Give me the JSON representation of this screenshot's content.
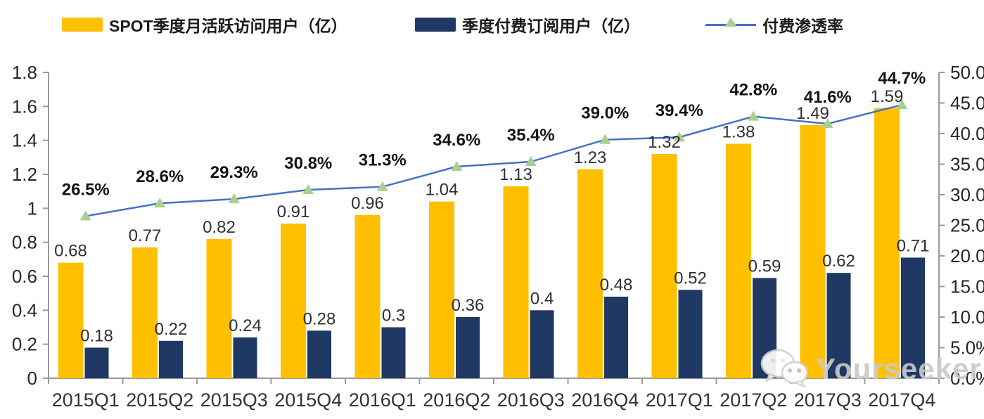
{
  "legend": {
    "items": [
      {
        "label": "SPOT季度月活跃访问用户（亿）",
        "swatch_color": "#FFC000",
        "type": "bar"
      },
      {
        "label": "季度付费订阅用户（亿）",
        "swatch_color": "#1F3864",
        "type": "bar"
      },
      {
        "label": "付费渗透率",
        "line_color": "#4472C4",
        "marker_color": "#A9D18E",
        "type": "line"
      }
    ]
  },
  "chart_data": {
    "type": "bar+line",
    "title": "",
    "categories": [
      "2015Q1",
      "2015Q2",
      "2015Q3",
      "2015Q4",
      "2016Q1",
      "2016Q2",
      "2016Q3",
      "2016Q4",
      "2017Q1",
      "2017Q2",
      "2017Q3",
      "2017Q4"
    ],
    "series": [
      {
        "name": "SPOT季度月活跃访问用户（亿）",
        "type": "bar",
        "axis": "left",
        "color": "#FFC000",
        "values": [
          0.68,
          0.77,
          0.82,
          0.91,
          0.96,
          1.04,
          1.13,
          1.23,
          1.32,
          1.38,
          1.49,
          1.59
        ],
        "value_labels": [
          "0.68",
          "0.77",
          "0.82",
          "0.91",
          "0.96",
          "1.04",
          "1.13",
          "1.23",
          "1.32",
          "1.38",
          "1.49",
          "1.59"
        ]
      },
      {
        "name": "季度付费订阅用户（亿）",
        "type": "bar",
        "axis": "left",
        "color": "#1F3864",
        "values": [
          0.18,
          0.22,
          0.24,
          0.28,
          0.3,
          0.36,
          0.4,
          0.48,
          0.52,
          0.59,
          0.62,
          0.71
        ],
        "value_labels": [
          "0.18",
          "0.22",
          "0.24",
          "0.28",
          "0.3",
          "0.36",
          "0.4",
          "0.48",
          "0.52",
          "0.59",
          "0.62",
          "0.71"
        ]
      },
      {
        "name": "付费渗透率",
        "type": "line",
        "axis": "right",
        "color": "#4472C4",
        "marker": "triangle",
        "marker_color": "#A9D18E",
        "values": [
          26.5,
          28.6,
          29.3,
          30.8,
          31.3,
          34.6,
          35.4,
          39.0,
          39.4,
          42.8,
          41.6,
          44.7
        ],
        "value_labels": [
          "26.5%",
          "28.6%",
          "29.3%",
          "30.8%",
          "31.3%",
          "34.6%",
          "35.4%",
          "39.0%",
          "39.4%",
          "42.8%",
          "41.6%",
          "44.7%"
        ]
      }
    ],
    "left_axis": {
      "min": 0,
      "max": 1.8,
      "step": 0.2,
      "tick_labels": [
        "0",
        "0.2",
        "0.4",
        "0.6",
        "0.8",
        "1",
        "1.2",
        "1.4",
        "1.6",
        "1.8"
      ]
    },
    "right_axis": {
      "min": 0,
      "max": 50,
      "step": 5,
      "tick_labels": [
        "0.0%",
        "5.0%",
        "10.0%",
        "15.0%",
        "20.0%",
        "25.0%",
        "30.0%",
        "35.0%",
        "40.0%",
        "45.0%",
        "50.0%"
      ]
    },
    "grid": false,
    "legend_position": "top"
  },
  "watermark": {
    "text": "Yourseeker",
    "icon": "wechat-icon"
  }
}
